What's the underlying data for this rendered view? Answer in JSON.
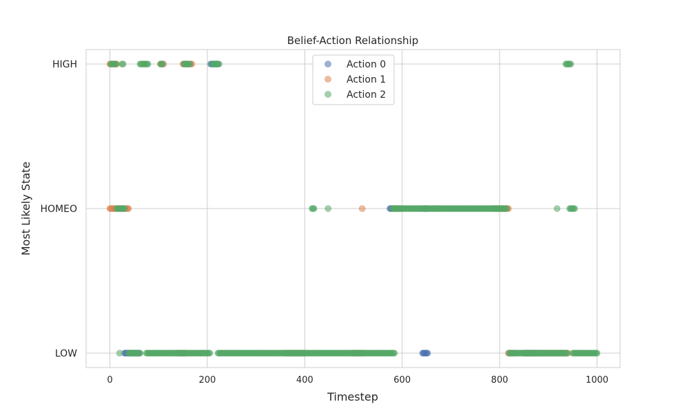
{
  "chart_data": {
    "type": "scatter",
    "title": "Belief-Action Relationship",
    "xlabel": "Timestep",
    "ylabel": "Most Likely State",
    "xlim": [
      -50,
      1050
    ],
    "x_ticks": [
      "0",
      "200",
      "400",
      "600",
      "800",
      "1000"
    ],
    "x_tick_values": [
      0,
      200,
      400,
      600,
      800,
      1000
    ],
    "y_categories": [
      "LOW",
      "HOMEO",
      "HIGH"
    ],
    "grid": true,
    "legend_position": "top-center",
    "colors": {
      "action0": "#4c72b0",
      "action1": "#dd8452",
      "action2": "#55a868"
    },
    "series": [
      {
        "name": "Action 0",
        "color": "#4c72b0",
        "segments": [
          {
            "state": "HIGH",
            "from": 207,
            "to": 222
          },
          {
            "state": "HOMEO",
            "from": 575,
            "to": 583
          },
          {
            "state": "HOMEO",
            "from": 645,
            "to": 652
          },
          {
            "state": "LOW",
            "from": 30,
            "to": 60
          },
          {
            "state": "LOW",
            "from": 642,
            "to": 652
          },
          {
            "state": "LOW",
            "from": 850,
            "to": 880
          }
        ]
      },
      {
        "name": "Action 1",
        "color": "#dd8452",
        "segments": [
          {
            "state": "HIGH",
            "from": 0,
            "to": 14
          },
          {
            "state": "HIGH",
            "from": 104,
            "to": 110
          },
          {
            "state": "HIGH",
            "from": 150,
            "to": 168
          },
          {
            "state": "HOMEO",
            "from": 0,
            "to": 38
          },
          {
            "state": "HOMEO",
            "from": 518,
            "to": 518
          },
          {
            "state": "HOMEO",
            "from": 585,
            "to": 600
          },
          {
            "state": "HOMEO",
            "from": 790,
            "to": 818
          },
          {
            "state": "LOW",
            "from": 140,
            "to": 155
          },
          {
            "state": "LOW",
            "from": 360,
            "to": 400
          },
          {
            "state": "LOW",
            "from": 500,
            "to": 520
          },
          {
            "state": "LOW",
            "from": 818,
            "to": 830
          },
          {
            "state": "LOW",
            "from": 880,
            "to": 940
          }
        ]
      },
      {
        "name": "Action 2",
        "color": "#55a868",
        "segments": [
          {
            "state": "HIGH",
            "from": 2,
            "to": 12
          },
          {
            "state": "HIGH",
            "from": 25,
            "to": 27
          },
          {
            "state": "HIGH",
            "from": 62,
            "to": 78
          },
          {
            "state": "HIGH",
            "from": 104,
            "to": 108
          },
          {
            "state": "HIGH",
            "from": 152,
            "to": 165
          },
          {
            "state": "HIGH",
            "from": 210,
            "to": 224
          },
          {
            "state": "HIGH",
            "from": 936,
            "to": 946
          },
          {
            "state": "HOMEO",
            "from": 14,
            "to": 30
          },
          {
            "state": "HOMEO",
            "from": 415,
            "to": 420
          },
          {
            "state": "HOMEO",
            "from": 448,
            "to": 448
          },
          {
            "state": "HOMEO",
            "from": 580,
            "to": 815
          },
          {
            "state": "HOMEO",
            "from": 918,
            "to": 918
          },
          {
            "state": "HOMEO",
            "from": 944,
            "to": 954
          },
          {
            "state": "LOW",
            "from": 20,
            "to": 20
          },
          {
            "state": "LOW",
            "from": 38,
            "to": 62
          },
          {
            "state": "LOW",
            "from": 75,
            "to": 205
          },
          {
            "state": "LOW",
            "from": 222,
            "to": 585
          },
          {
            "state": "LOW",
            "from": 820,
            "to": 938
          },
          {
            "state": "LOW",
            "from": 950,
            "to": 1000
          }
        ]
      }
    ]
  }
}
